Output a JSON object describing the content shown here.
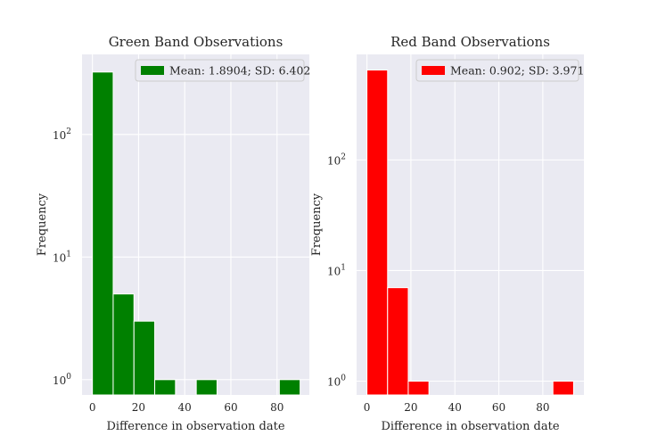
{
  "chart_data": [
    {
      "type": "bar",
      "subtype": "histogram",
      "title": "Green Band Observations",
      "xlabel": "Difference in observation date",
      "ylabel": "Frequency",
      "yscale": "log",
      "xlim": [
        -4.5,
        94
      ],
      "ylim": [
        0.75,
        450
      ],
      "xticks": [
        0,
        20,
        40,
        60,
        80
      ],
      "yticks": [
        {
          "value": 1,
          "base": "10",
          "exp": "0"
        },
        {
          "value": 10,
          "base": "10",
          "exp": "1"
        },
        {
          "value": 100,
          "base": "10",
          "exp": "2"
        }
      ],
      "grid": true,
      "bin_edges": [
        0,
        9,
        18,
        27,
        36,
        45,
        54,
        63,
        72,
        81,
        90
      ],
      "counts": [
        323,
        5,
        3,
        1,
        0,
        1,
        0,
        0,
        0,
        1
      ],
      "color": "#008000",
      "legend": {
        "label": "Mean: 1.8904; SD: 6.402",
        "position": "upper right"
      }
    },
    {
      "type": "bar",
      "subtype": "histogram",
      "title": "Red Band Observations",
      "xlabel": "Difference in observation date",
      "ylabel": "Frequency",
      "yscale": "log",
      "xlim": [
        -4.7,
        98.7
      ],
      "ylim": [
        0.75,
        900
      ],
      "xticks": [
        0,
        20,
        40,
        60,
        80
      ],
      "yticks": [
        {
          "value": 1,
          "base": "10",
          "exp": "0"
        },
        {
          "value": 10,
          "base": "10",
          "exp": "1"
        },
        {
          "value": 100,
          "base": "10",
          "exp": "2"
        }
      ],
      "grid": true,
      "bin_edges": [
        0,
        9.4,
        18.8,
        28.2,
        37.6,
        47,
        56.4,
        65.8,
        75.2,
        84.6,
        94
      ],
      "counts": [
        650,
        7,
        1,
        0,
        0,
        0,
        0,
        0,
        0,
        1
      ],
      "color": "#ff0000",
      "legend": {
        "label": "Mean: 0.902; SD: 3.971",
        "position": "upper right"
      }
    }
  ]
}
